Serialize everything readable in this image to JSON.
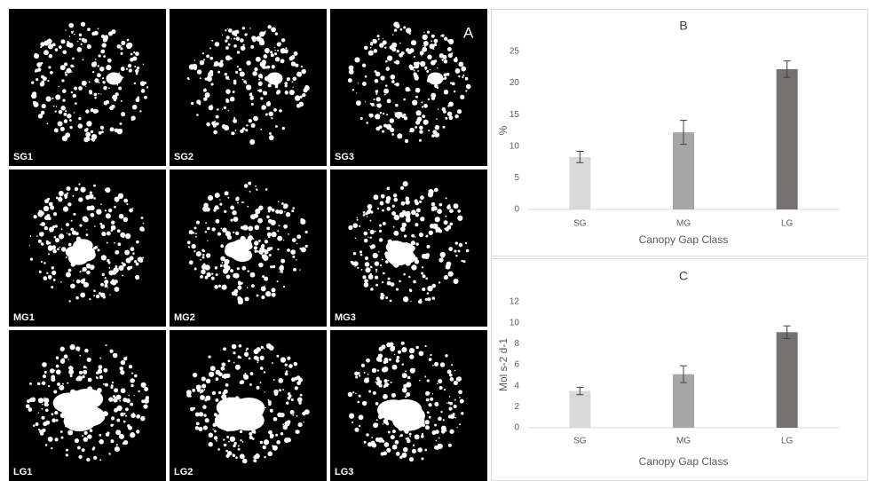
{
  "panel_a": {
    "label": "A",
    "images": [
      "SG1",
      "SG2",
      "SG3",
      "MG1",
      "MG2",
      "MG3",
      "LG1",
      "LG2",
      "LG3"
    ]
  },
  "chart_data": [
    {
      "type": "bar",
      "title": "B",
      "y_label": "%",
      "x_label": "Canopy Gap Class",
      "categories": [
        "SG",
        "MG",
        "LG"
      ],
      "values": [
        8.3,
        12.2,
        22.2
      ],
      "errors": [
        0.9,
        1.9,
        1.3
      ],
      "colors": [
        "#d9d9d9",
        "#a6a6a6",
        "#767171"
      ],
      "ylim": [
        0,
        25
      ],
      "yticks": [
        0,
        5,
        10,
        15,
        20,
        25
      ],
      "grid": false
    },
    {
      "type": "bar",
      "title": "C",
      "y_label": "Mol s-2 d-1",
      "x_label": "Canopy Gap Class",
      "categories": [
        "SG",
        "MG",
        "LG"
      ],
      "values": [
        3.5,
        5.1,
        9.1
      ],
      "errors": [
        0.35,
        0.8,
        0.6
      ],
      "colors": [
        "#d9d9d9",
        "#a6a6a6",
        "#767171"
      ],
      "ylim": [
        0,
        12
      ],
      "yticks": [
        0,
        2,
        4,
        6,
        8,
        10,
        12
      ],
      "grid": false
    }
  ]
}
